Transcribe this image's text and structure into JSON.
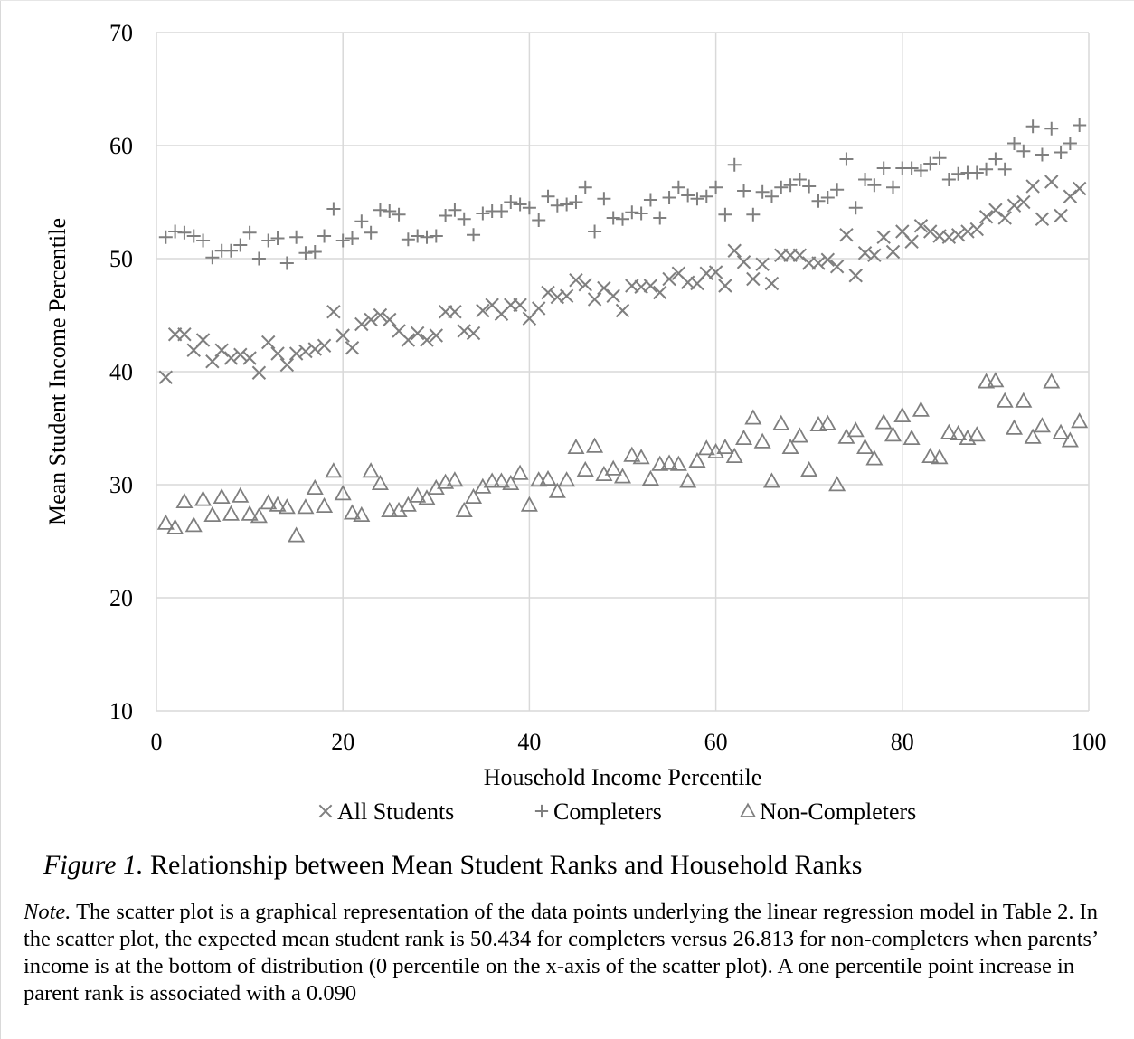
{
  "chart_data": {
    "type": "scatter",
    "title": "",
    "xlabel": "Household Income Percentile",
    "ylabel": "Mean Student Income Percentile",
    "xlim": [
      0,
      100
    ],
    "ylim": [
      10,
      70
    ],
    "xticks": [
      0,
      20,
      40,
      60,
      80,
      100
    ],
    "yticks": [
      10,
      20,
      30,
      40,
      50,
      60,
      70
    ],
    "grid": true,
    "legend_position": "bottom",
    "series": [
      {
        "name": "All Students",
        "marker": "x",
        "color": "#7f7f7f",
        "x": [
          1,
          2,
          3,
          4,
          5,
          6,
          7,
          8,
          9,
          10,
          11,
          12,
          13,
          14,
          15,
          16,
          17,
          18,
          19,
          20,
          21,
          22,
          23,
          24,
          25,
          26,
          27,
          28,
          29,
          30,
          31,
          32,
          33,
          34,
          35,
          36,
          37,
          38,
          39,
          40,
          41,
          42,
          43,
          44,
          45,
          46,
          47,
          48,
          49,
          50,
          51,
          52,
          53,
          54,
          55,
          56,
          57,
          58,
          59,
          60,
          61,
          62,
          63,
          64,
          65,
          66,
          67,
          68,
          69,
          70,
          71,
          72,
          73,
          74,
          75,
          76,
          77,
          78,
          79,
          80,
          81,
          82,
          83,
          84,
          85,
          86,
          87,
          88,
          89,
          90,
          91,
          92,
          93,
          94,
          95,
          96,
          97,
          98,
          99
        ],
        "y": [
          39.5,
          43.3,
          43.3,
          41.9,
          42.8,
          40.9,
          41.9,
          41.2,
          41.5,
          41.2,
          39.9,
          42.6,
          41.6,
          40.6,
          41.6,
          41.8,
          42.0,
          42.3,
          45.3,
          43.2,
          42.1,
          44.2,
          44.6,
          45.0,
          44.6,
          43.6,
          42.8,
          43.4,
          42.8,
          43.2,
          45.3,
          45.3,
          43.6,
          43.4,
          45.4,
          45.9,
          45.1,
          45.9,
          45.9,
          44.7,
          45.6,
          47.0,
          46.6,
          46.7,
          48.1,
          47.7,
          46.4,
          47.4,
          46.7,
          45.4,
          47.6,
          47.5,
          47.6,
          47.0,
          48.2,
          48.7,
          47.9,
          47.8,
          48.7,
          48.8,
          47.6,
          50.7,
          49.7,
          48.2,
          49.5,
          47.8,
          50.3,
          50.3,
          50.3,
          49.6,
          49.6,
          49.9,
          49.3,
          52.1,
          48.5,
          50.5,
          50.3,
          51.9,
          50.6,
          52.4,
          51.5,
          52.9,
          52.4,
          52.0,
          51.9,
          52.1,
          52.4,
          52.6,
          53.7,
          54.3,
          53.6,
          54.7,
          55.0,
          56.4,
          53.5,
          56.8,
          53.8,
          55.5,
          56.2
        ]
      },
      {
        "name": "Completers",
        "marker": "+",
        "color": "#7f7f7f",
        "x": [
          1,
          2,
          3,
          4,
          5,
          6,
          7,
          8,
          9,
          10,
          11,
          12,
          13,
          14,
          15,
          16,
          17,
          18,
          19,
          20,
          21,
          22,
          23,
          24,
          25,
          26,
          27,
          28,
          29,
          30,
          31,
          32,
          33,
          34,
          35,
          36,
          37,
          38,
          39,
          40,
          41,
          42,
          43,
          44,
          45,
          46,
          47,
          48,
          49,
          50,
          51,
          52,
          53,
          54,
          55,
          56,
          57,
          58,
          59,
          60,
          61,
          62,
          63,
          64,
          65,
          66,
          67,
          68,
          69,
          70,
          71,
          72,
          73,
          74,
          75,
          76,
          77,
          78,
          79,
          80,
          81,
          82,
          83,
          84,
          85,
          86,
          87,
          88,
          89,
          90,
          91,
          92,
          93,
          94,
          95,
          96,
          97,
          98,
          99
        ],
        "y": [
          51.9,
          52.4,
          52.3,
          52.0,
          51.6,
          50.1,
          50.7,
          50.7,
          51.2,
          52.3,
          50.0,
          51.6,
          51.8,
          49.6,
          51.9,
          50.5,
          50.6,
          52.0,
          54.4,
          51.6,
          51.8,
          53.3,
          52.3,
          54.3,
          54.2,
          53.9,
          51.7,
          52.0,
          51.9,
          52.0,
          53.8,
          54.3,
          53.5,
          52.1,
          54.0,
          54.2,
          54.2,
          55.0,
          54.8,
          54.5,
          53.4,
          55.5,
          54.7,
          54.8,
          55.0,
          56.3,
          52.4,
          55.3,
          53.6,
          53.5,
          54.1,
          54.0,
          55.2,
          53.6,
          55.4,
          56.3,
          55.6,
          55.3,
          55.5,
          56.3,
          53.9,
          58.3,
          56.0,
          53.9,
          55.9,
          55.5,
          56.3,
          56.5,
          57.0,
          56.4,
          55.1,
          55.4,
          56.1,
          58.8,
          54.5,
          57.0,
          56.5,
          58.0,
          56.3,
          58.0,
          58.0,
          57.8,
          58.4,
          58.9,
          57.0,
          57.5,
          57.6,
          57.6,
          57.9,
          58.8,
          57.9,
          60.2,
          59.5,
          61.7,
          59.2,
          61.5,
          59.4,
          60.2,
          61.8
        ]
      },
      {
        "name": "Non-Completers",
        "marker": "triangle",
        "color": "#7f7f7f",
        "x": [
          1,
          2,
          3,
          4,
          5,
          6,
          7,
          8,
          9,
          10,
          11,
          12,
          13,
          14,
          15,
          16,
          17,
          18,
          19,
          20,
          21,
          22,
          23,
          24,
          25,
          26,
          27,
          28,
          29,
          30,
          31,
          32,
          33,
          34,
          35,
          36,
          37,
          38,
          39,
          40,
          41,
          42,
          43,
          44,
          45,
          46,
          47,
          48,
          49,
          50,
          51,
          52,
          53,
          54,
          55,
          56,
          57,
          58,
          59,
          60,
          61,
          62,
          63,
          64,
          65,
          66,
          67,
          68,
          69,
          70,
          71,
          72,
          73,
          74,
          75,
          76,
          77,
          78,
          79,
          80,
          81,
          82,
          83,
          84,
          85,
          86,
          87,
          88,
          89,
          90,
          91,
          92,
          93,
          94,
          95,
          96,
          97,
          98,
          99
        ],
        "y": [
          26.6,
          26.2,
          28.5,
          26.4,
          28.7,
          27.3,
          28.9,
          27.4,
          29.0,
          27.4,
          27.2,
          28.4,
          28.2,
          28.0,
          25.5,
          28.0,
          29.7,
          28.1,
          31.2,
          29.2,
          27.5,
          27.3,
          31.2,
          30.1,
          27.7,
          27.7,
          28.2,
          29.0,
          28.8,
          29.7,
          30.2,
          30.4,
          27.7,
          28.9,
          29.8,
          30.3,
          30.3,
          30.1,
          31.0,
          28.2,
          30.4,
          30.5,
          29.4,
          30.4,
          33.3,
          31.3,
          33.4,
          30.9,
          31.4,
          30.7,
          32.6,
          32.4,
          30.5,
          31.8,
          31.9,
          31.8,
          30.3,
          32.1,
          33.2,
          32.9,
          33.3,
          32.5,
          34.1,
          35.9,
          33.8,
          30.3,
          35.4,
          33.3,
          34.3,
          31.3,
          35.3,
          35.4,
          30.0,
          34.2,
          34.8,
          33.3,
          32.3,
          35.5,
          34.4,
          36.1,
          34.1,
          36.6,
          32.5,
          32.4,
          34.6,
          34.5,
          34.1,
          34.4,
          39.1,
          39.2,
          37.4,
          35.0,
          37.4,
          34.2,
          35.2,
          39.1,
          34.6,
          33.9,
          35.6
        ]
      }
    ]
  },
  "caption": {
    "figure_number": "Figure 1.",
    "text": " Relationship between Mean Student Ranks and Household Ranks"
  },
  "note": {
    "label": "Note.",
    "text": " The scatter plot is a graphical representation of the data points underlying the linear regression model in Table 2. In the scatter plot, the expected mean student rank is 50.434 for completers versus 26.813 for non-completers when parents’ income is at the bottom of distribution (0 percentile on the x-axis of the scatter plot). A one percentile point increase in parent rank is associated with a 0.090"
  }
}
